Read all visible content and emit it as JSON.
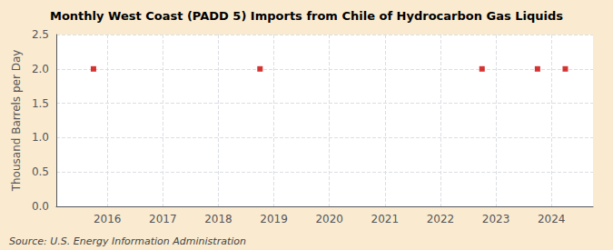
{
  "chart_data": {
    "type": "scatter",
    "title": "Monthly West Coast (PADD 5) Imports from Chile of Hydrocarbon Gas Liquids",
    "ylabel": "Thousand Barrels per Day",
    "annotation": "Source: U.S. Energy Information Administration",
    "x": [
      2015.75,
      2018.75,
      2022.75,
      2023.75,
      2024.25
    ],
    "values": [
      2.0,
      2.0,
      2.0,
      2.0,
      2.0
    ],
    "color": "#cc0000",
    "marker": "square",
    "xlim": [
      2015.08,
      2024.75
    ],
    "xticks": [
      2016,
      2017,
      2018,
      2019,
      2020,
      2021,
      2022,
      2023,
      2024
    ],
    "ylim": [
      0.0,
      2.5
    ],
    "yticks": [
      {
        "value": 0.0,
        "label": "0.0"
      },
      0.5,
      {
        "value": 1.0,
        "label": "1.0"
      },
      1.5,
      {
        "value": 2.0,
        "label": "2.0"
      },
      2.5
    ],
    "grid": true
  }
}
